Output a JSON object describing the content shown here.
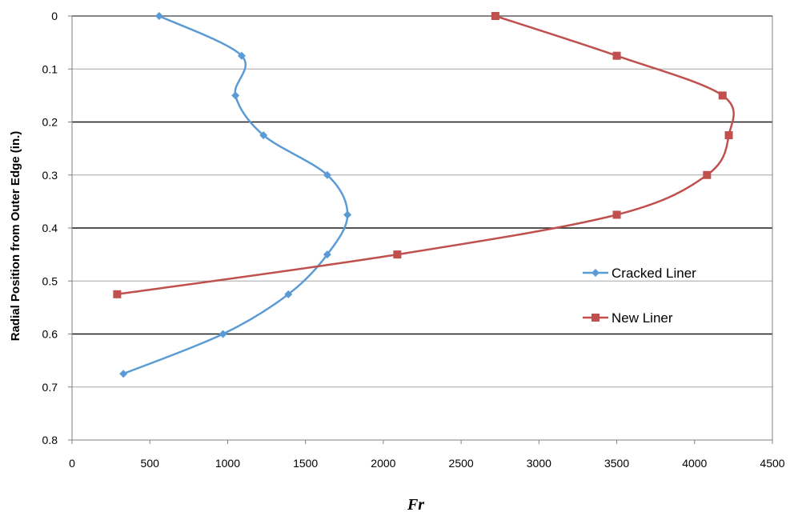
{
  "chart_data": {
    "type": "line",
    "title": "",
    "xlabel": "Fr",
    "ylabel": "Radial Position from Outer Edge (in.)",
    "xlim": [
      0,
      4500
    ],
    "ylim": [
      0,
      0.8
    ],
    "y_inverted": true,
    "x_ticks": [
      "0",
      "500",
      "1000",
      "1500",
      "2000",
      "2500",
      "3000",
      "3500",
      "4000",
      "4500"
    ],
    "y_ticks": [
      "0",
      "0.1",
      "0.2",
      "0.3",
      "0.4",
      "0.5",
      "0.6",
      "0.7",
      "0.8"
    ],
    "grid": "horizontal",
    "legend_position": "right",
    "series": [
      {
        "name": "Cracked Liner",
        "color": "#5b9bd5",
        "marker": "diamond",
        "points": [
          {
            "x": 560,
            "y": 0.0
          },
          {
            "x": 1090,
            "y": 0.075
          },
          {
            "x": 1050,
            "y": 0.15
          },
          {
            "x": 1230,
            "y": 0.225
          },
          {
            "x": 1640,
            "y": 0.3
          },
          {
            "x": 1770,
            "y": 0.375
          },
          {
            "x": 1640,
            "y": 0.45
          },
          {
            "x": 1390,
            "y": 0.525
          },
          {
            "x": 970,
            "y": 0.6
          },
          {
            "x": 330,
            "y": 0.675
          }
        ]
      },
      {
        "name": "New Liner",
        "color": "#c0504d",
        "marker": "square",
        "points": [
          {
            "x": 2720,
            "y": 0.0
          },
          {
            "x": 3500,
            "y": 0.075
          },
          {
            "x": 4180,
            "y": 0.15
          },
          {
            "x": 4220,
            "y": 0.225
          },
          {
            "x": 4080,
            "y": 0.3
          },
          {
            "x": 3500,
            "y": 0.375
          },
          {
            "x": 2090,
            "y": 0.45
          },
          {
            "x": 290,
            "y": 0.525
          }
        ]
      }
    ]
  }
}
